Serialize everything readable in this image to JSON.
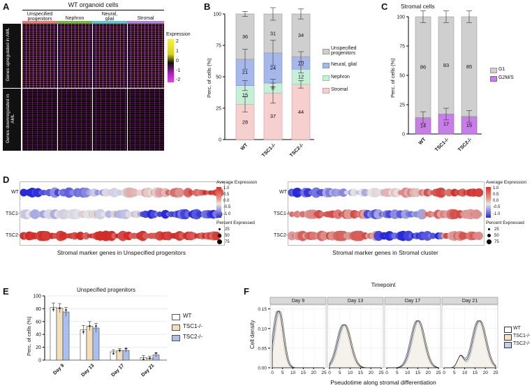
{
  "panel_a": {
    "letter": "A",
    "title": "WT organoid cells",
    "groups": [
      "Unspecified progenitors",
      "Nephron",
      "Neural, glial",
      "Stromal"
    ],
    "group_colors": [
      "#e07b7a",
      "#7cb342",
      "#5ec3cf",
      "#b07fd8"
    ],
    "row_label_up": "Genes upregulated in AML",
    "row_label_down": "Genes downregulated in AML",
    "legend_title": "Expression",
    "legend_ticks": [
      "2",
      "1",
      "0",
      "-1",
      "-2"
    ]
  },
  "panel_b": {
    "letter": "B",
    "ylabel": "Perc. of cells (%)",
    "yticks": [
      "100",
      "75",
      "50",
      "25",
      "0"
    ],
    "legend": [
      "Unspecified progenitors",
      "Neural, glial",
      "Nephron",
      "Stromal"
    ],
    "colors": {
      "unspecified": "#cfcfcf",
      "neural": "#a6b8ea",
      "nephron": "#c7eed6",
      "stromal": "#f6cfcf"
    },
    "chart_data": {
      "type": "bar",
      "stacked": true,
      "categories": [
        "WT",
        "TSC1-/-",
        "TSC2-/-"
      ],
      "series": [
        {
          "name": "Stromal",
          "values": [
            28,
            37,
            44
          ]
        },
        {
          "name": "Nephron",
          "values": [
            15,
            8,
            12
          ]
        },
        {
          "name": "Neural, glial",
          "values": [
            21,
            24,
            10
          ]
        },
        {
          "name": "Unspecified progenitors",
          "values": [
            36,
            31,
            34
          ]
        }
      ],
      "ylim": [
        0,
        100
      ]
    }
  },
  "panel_c": {
    "letter": "C",
    "title": "Stromal cells",
    "ylabel": "Perc. of cells (%)",
    "yticks": [
      "100",
      "75",
      "50",
      "25",
      "0"
    ],
    "legend": [
      "G1",
      "G2M/S"
    ],
    "colors": {
      "g1": "#cfcfcf",
      "g2ms": "#c77ee6"
    },
    "chart_data": {
      "type": "bar",
      "stacked": true,
      "categories": [
        "WT",
        "TSC1-/-",
        "TSC2-/-"
      ],
      "series": [
        {
          "name": "G2M/S",
          "values": [
            14,
            17,
            15
          ]
        },
        {
          "name": "G1",
          "values": [
            86,
            83,
            85
          ]
        }
      ],
      "ylim": [
        0,
        100
      ]
    }
  },
  "panel_d": {
    "letter": "D",
    "rows": [
      "WT",
      "TSC1-/-",
      "TSC2-/-"
    ],
    "left_caption": "Stromal marker genes in Unspecified progenitors",
    "right_caption": "Stromal marker genes in Stromal cluster",
    "legend_title": "Average Expression",
    "legend_ticks": [
      "1.0",
      "0.5",
      "0.0",
      "-0.5",
      "-1.0"
    ],
    "size_title": "Percent Expressed",
    "size_values": [
      "25",
      "50",
      "75"
    ]
  },
  "panel_e": {
    "letter": "E",
    "title": "Unspecified progenitors",
    "ylabel": "Perc. of cells (%)",
    "yticks": [
      "100",
      "80",
      "60",
      "40",
      "20",
      "0"
    ],
    "legend": [
      "WT",
      "TSC1-/-",
      "TSC2-/-"
    ],
    "colors": {
      "wt": "#ffffff",
      "tsc1": "#f3dfb9",
      "tsc2": "#a9bff0"
    },
    "chart_data": {
      "type": "bar",
      "categories": [
        "Day 9",
        "Day 13",
        "Day 17",
        "Day 21"
      ],
      "series": [
        {
          "name": "WT",
          "values": [
            82,
            47,
            13,
            4
          ]
        },
        {
          "name": "TSC1-/-",
          "values": [
            81,
            53,
            15,
            3
          ]
        },
        {
          "name": "TSC2-/-",
          "values": [
            75,
            50,
            15,
            8
          ]
        }
      ],
      "ylim": [
        0,
        100
      ]
    }
  },
  "panel_f": {
    "letter": "F",
    "title": "Timepoint",
    "facets": [
      "Day 9",
      "Day 13",
      "Day 17",
      "Day 21"
    ],
    "ylabel": "Cell density",
    "xlabel": "Pseudotime along stromal differentiation",
    "yticks": [
      "0.15",
      "0.10",
      "0.05",
      "0.00"
    ],
    "xticks": [
      "0",
      "5",
      "10",
      "15",
      "20",
      "25"
    ],
    "legend": [
      "WT",
      "TSC1-/-",
      "TSC2-/-"
    ],
    "chart_data": {
      "type": "area",
      "x_range": [
        0,
        25
      ],
      "ylim": [
        0,
        0.16
      ],
      "facet_peaks": [
        {
          "facet": "Day 9",
          "peak_x": 3,
          "peak_y": 0.145
        },
        {
          "facet": "Day 13",
          "peak_x": 7,
          "peak_y": 0.11
        },
        {
          "facet": "Day 17",
          "peak_x": 15,
          "peak_y": 0.12
        },
        {
          "facet": "Day 21",
          "peak_x": 17,
          "peak_y": 0.12
        }
      ]
    }
  }
}
